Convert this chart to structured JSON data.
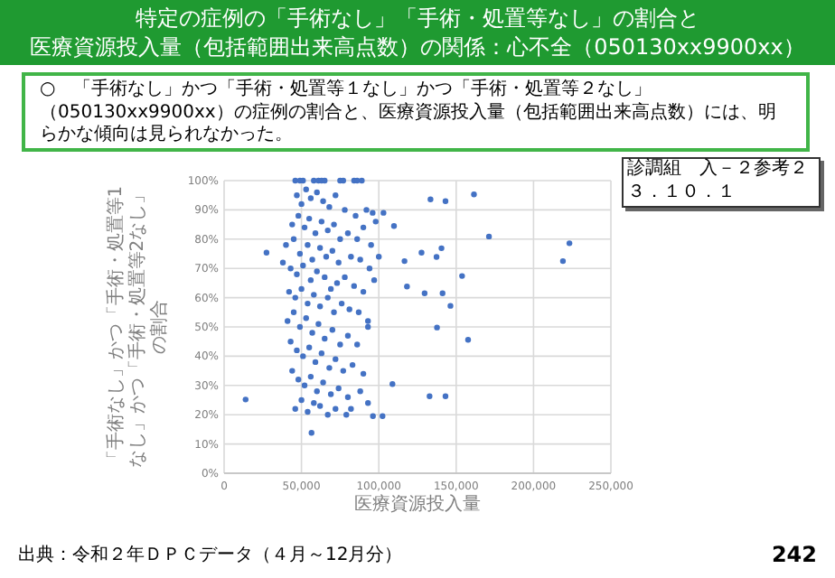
{
  "chart_data": {
    "type": "scatter",
    "title": "特定の症例の「手術なし」「手術・処置等なし」の割合と",
    "subtitle": "医療資源投入量（包括範囲出来高点数）の関係：心不全（050130xx9900xx）",
    "xlabel": "医療資源投入量",
    "ylabel": "「手術なし」かつ「手術・処置等1なし」かつ「手術・処置等2なし」の割合",
    "annotations": [
      "○　「手術なし」かつ「手術・処置等１なし」かつ「手術・処置等２なし」（050130xx9900xx）の症例の割合と、医療資源投入量（包括範囲出来高点数）には、明らかな傾向は見られなかった。",
      "診調組　入－２参考２",
      "３．１０．１",
      "出典：令和２年ＤＰＣデータ（４月～12月分）",
      "242"
    ],
    "xlim": [
      0,
      250000
    ],
    "xticks": [
      {
        "value": 0,
        "label": "0"
      },
      {
        "value": 50000,
        "label": "50,000"
      },
      {
        "value": 100000,
        "label": "100,000"
      },
      {
        "value": 150000,
        "label": "150,000"
      },
      {
        "value": 200000,
        "label": "200,000"
      },
      {
        "value": 250000,
        "label": "250,000"
      }
    ],
    "ylim": [
      0,
      100
    ],
    "yticks": [
      {
        "value": 0,
        "label": "0%"
      },
      {
        "value": 10,
        "label": "10%"
      },
      {
        "value": 20,
        "label": "20%"
      },
      {
        "value": 30,
        "label": "30%"
      },
      {
        "value": 40,
        "label": "40%"
      },
      {
        "value": 50,
        "label": "50%"
      },
      {
        "value": 60,
        "label": "60%"
      },
      {
        "value": 70,
        "label": "70%"
      },
      {
        "value": 80,
        "label": "80%"
      },
      {
        "value": 90,
        "label": "90%"
      },
      {
        "value": 100,
        "label": "100%"
      }
    ],
    "grid": true,
    "marker": "circle",
    "series": [
      {
        "color": "#4472c4",
        "x": [
          46000,
          49000,
          51000,
          58000,
          61000,
          63000,
          65000,
          75000,
          77000,
          84000,
          86000,
          89000,
          47000,
          50000,
          53000,
          56000,
          60000,
          64000,
          68000,
          72000,
          78000,
          85000,
          92000,
          96000,
          98000,
          44000,
          48000,
          52000,
          55000,
          59000,
          63000,
          67000,
          71000,
          75000,
          80000,
          86000,
          90000,
          95000,
          40000,
          45000,
          49000,
          54000,
          57000,
          62000,
          66000,
          70000,
          74000,
          82000,
          88000,
          94000,
          100000,
          38000,
          43000,
          47000,
          51000,
          56000,
          60000,
          65000,
          69000,
          73000,
          78000,
          84000,
          90000,
          97000,
          42000,
          46000,
          50000,
          54000,
          58000,
          62000,
          67000,
          71000,
          76000,
          81000,
          87000,
          93000,
          41000,
          45000,
          49000,
          53000,
          57000,
          61000,
          65000,
          70000,
          75000,
          80000,
          86000,
          93000,
          43000,
          47000,
          51000,
          55000,
          59000,
          63000,
          68000,
          72000,
          77000,
          83000,
          90000,
          44000,
          48000,
          52000,
          56000,
          60000,
          64000,
          69000,
          74000,
          80000,
          88000,
          93000,
          46000,
          50000,
          54000,
          58000,
          62000,
          67000,
          72000,
          79000,
          82000,
          133400,
          143100,
          161500,
          171200,
          223200,
          219000,
          127600,
          140500,
          137300,
          153800,
          118200,
          129600,
          141200,
          146300,
          137600,
          157700,
          108800,
          132800,
          143100,
          96200,
          102400,
          116600,
          109800,
          103000,
          13900,
          27400,
          56500
        ],
        "values": [
          100,
          100,
          100,
          100,
          100,
          100,
          100,
          100,
          100,
          100,
          100,
          100,
          95,
          92,
          97,
          94,
          96,
          93,
          91,
          95,
          90,
          88,
          90,
          89,
          86,
          85,
          88,
          84,
          87,
          82,
          86,
          83,
          85,
          80,
          82,
          80,
          84,
          78,
          78,
          80,
          75,
          78,
          73,
          77,
          74,
          76,
          72,
          74,
          73,
          70,
          74,
          72,
          70,
          68,
          71,
          66,
          69,
          67,
          63,
          65,
          67,
          64,
          62,
          66,
          62,
          60,
          63,
          58,
          61,
          57,
          60,
          55,
          58,
          56,
          55,
          52,
          52,
          55,
          50,
          53,
          48,
          51,
          46,
          49,
          44,
          47,
          44,
          50,
          45,
          42,
          40,
          43,
          38,
          41,
          36,
          39,
          35,
          37,
          34,
          35,
          32,
          30,
          33,
          28,
          31,
          27,
          29,
          26,
          28,
          24,
          22,
          25,
          21,
          24,
          23,
          20,
          22,
          20,
          22,
          93.6,
          93,
          95.3,
          80.9,
          78.6,
          72.5,
          75.4,
          76.9,
          73.9,
          67.4,
          63.8,
          61.5,
          61.5,
          57.2,
          49.8,
          45.6,
          30.5,
          26.3,
          26.3,
          19.5,
          19.5,
          72.5,
          84.5,
          89,
          25.2,
          75.4,
          13.8
        ]
      }
    ]
  }
}
